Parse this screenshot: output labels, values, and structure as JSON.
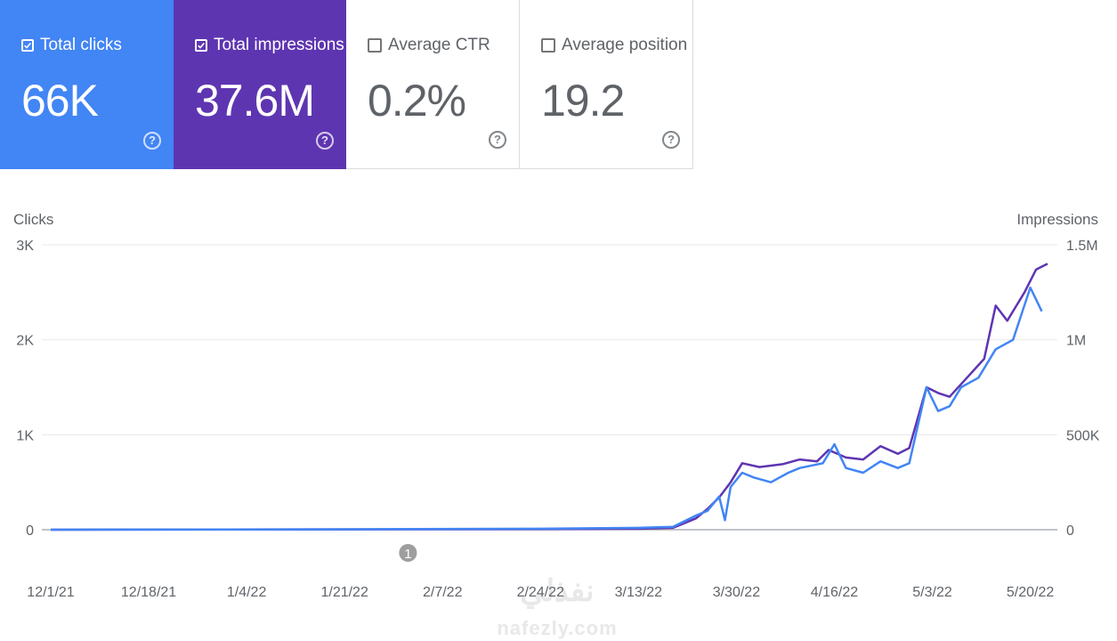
{
  "metrics": [
    {
      "label": "Total clicks",
      "value": "66K",
      "checked": true,
      "color": "#4285f4"
    },
    {
      "label": "Total impressions",
      "value": "37.6M",
      "checked": true,
      "color": "#5e35b1"
    },
    {
      "label": "Average CTR",
      "value": "0.2%",
      "checked": false
    },
    {
      "label": "Average position",
      "value": "19.2",
      "checked": false
    }
  ],
  "help_glyph": "?",
  "watermark": {
    "text": "nafezly.com",
    "arabic": "نفذلي"
  },
  "chart_data": {
    "type": "line",
    "ylabel_left": "Clicks",
    "ylabel_right": "Impressions",
    "y_left": {
      "min": 0,
      "max": 3000,
      "ticks": [
        0,
        1000,
        2000,
        3000
      ],
      "tick_labels": [
        "0",
        "1K",
        "2K",
        "3K"
      ]
    },
    "y_right": {
      "min": 0,
      "max": 1500000,
      "ticks": [
        0,
        500000,
        1000000,
        1500000
      ],
      "tick_labels": [
        "0",
        "500K",
        "1M",
        "1.5M"
      ]
    },
    "x_tick_labels": [
      "12/1/21",
      "12/18/21",
      "1/4/22",
      "1/21/22",
      "2/7/22",
      "2/24/22",
      "3/13/22",
      "3/30/22",
      "4/16/22",
      "5/3/22",
      "5/20/22"
    ],
    "annotation": {
      "label": "1",
      "date": "2/1/22"
    },
    "series": [
      {
        "name": "Total clicks",
        "axis": "left",
        "color": "#4285f4",
        "points": [
          [
            "12/1/21",
            0
          ],
          [
            "1/21/22",
            5
          ],
          [
            "2/24/22",
            10
          ],
          [
            "3/13/22",
            20
          ],
          [
            "3/19/22",
            30
          ],
          [
            "3/23/22",
            150
          ],
          [
            "3/25/22",
            200
          ],
          [
            "3/27/22",
            350
          ],
          [
            "3/28/22",
            100
          ],
          [
            "3/29/22",
            450
          ],
          [
            "3/31/22",
            600
          ],
          [
            "4/2/22",
            550
          ],
          [
            "4/5/22",
            500
          ],
          [
            "4/8/22",
            600
          ],
          [
            "4/10/22",
            650
          ],
          [
            "4/14/22",
            700
          ],
          [
            "4/16/22",
            900
          ],
          [
            "4/18/22",
            650
          ],
          [
            "4/21/22",
            600
          ],
          [
            "4/24/22",
            720
          ],
          [
            "4/27/22",
            650
          ],
          [
            "4/29/22",
            700
          ],
          [
            "5/2/22",
            1500
          ],
          [
            "5/4/22",
            1250
          ],
          [
            "5/6/22",
            1300
          ],
          [
            "5/8/22",
            1500
          ],
          [
            "5/11/22",
            1600
          ],
          [
            "5/14/22",
            1900
          ],
          [
            "5/17/22",
            2000
          ],
          [
            "5/20/22",
            2550
          ],
          [
            "5/22/22",
            2300
          ]
        ]
      },
      {
        "name": "Total impressions",
        "axis": "right",
        "color": "#5e35b1",
        "points": [
          [
            "12/1/21",
            0
          ],
          [
            "1/21/22",
            2000
          ],
          [
            "2/24/22",
            3000
          ],
          [
            "3/13/22",
            5000
          ],
          [
            "3/19/22",
            10000
          ],
          [
            "3/23/22",
            60000
          ],
          [
            "3/25/22",
            110000
          ],
          [
            "3/27/22",
            170000
          ],
          [
            "3/29/22",
            250000
          ],
          [
            "3/31/22",
            350000
          ],
          [
            "4/3/22",
            330000
          ],
          [
            "4/7/22",
            345000
          ],
          [
            "4/10/22",
            370000
          ],
          [
            "4/13/22",
            360000
          ],
          [
            "4/15/22",
            420000
          ],
          [
            "4/18/22",
            380000
          ],
          [
            "4/21/22",
            370000
          ],
          [
            "4/24/22",
            440000
          ],
          [
            "4/27/22",
            400000
          ],
          [
            "4/29/22",
            430000
          ],
          [
            "5/2/22",
            750000
          ],
          [
            "5/4/22",
            720000
          ],
          [
            "5/6/22",
            700000
          ],
          [
            "5/9/22",
            800000
          ],
          [
            "5/12/22",
            900000
          ],
          [
            "5/14/22",
            1180000
          ],
          [
            "5/16/22",
            1100000
          ],
          [
            "5/19/22",
            1250000
          ],
          [
            "5/21/22",
            1370000
          ],
          [
            "5/23/22",
            1400000
          ]
        ]
      }
    ]
  }
}
